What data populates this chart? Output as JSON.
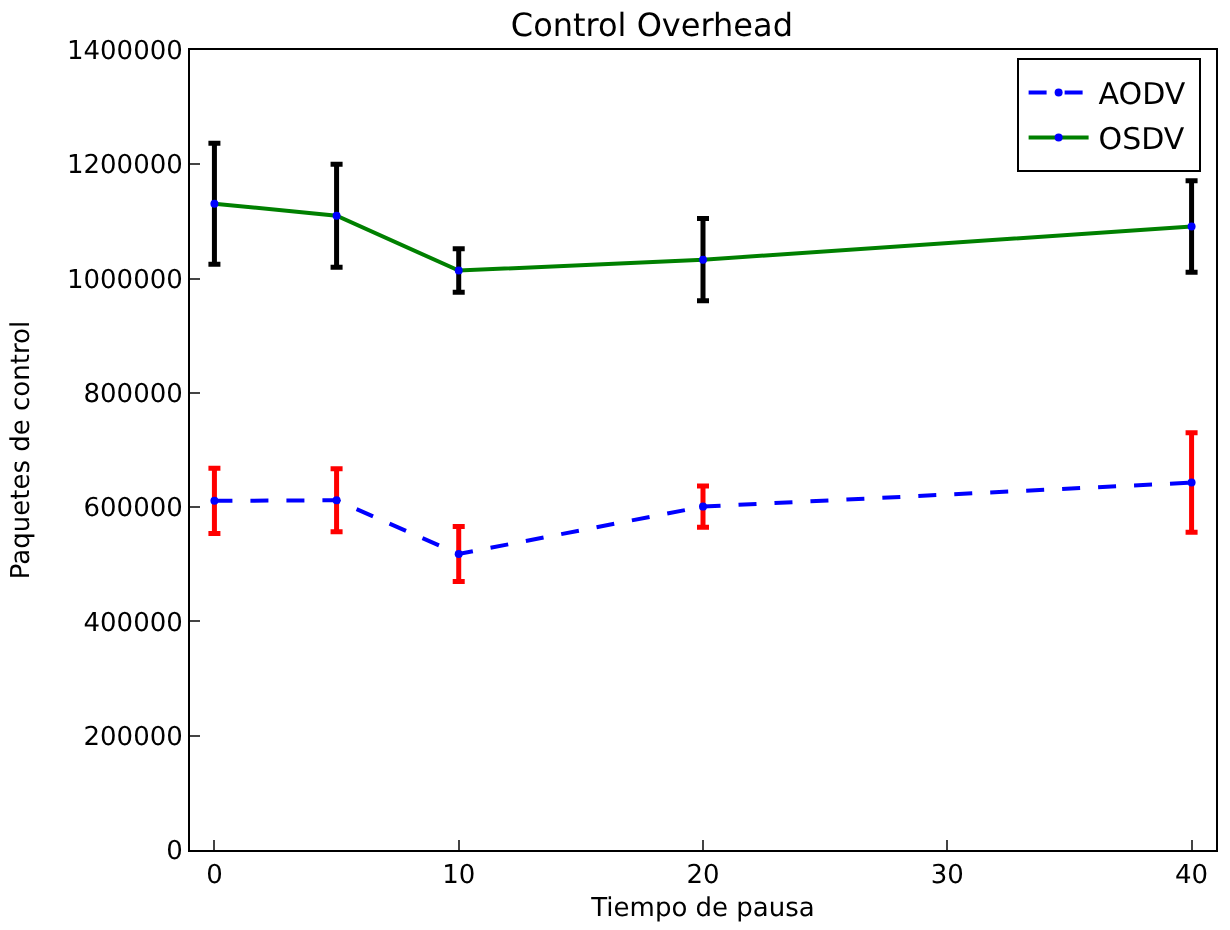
{
  "chart_data": {
    "type": "line",
    "title": "Control Overhead",
    "xlabel": "Tiempo de pausa",
    "ylabel": "Paquetes de control",
    "x": [
      0,
      5,
      10,
      20,
      40
    ],
    "series": [
      {
        "name": "AODV",
        "color": "#0000ff",
        "line_style": "dashed",
        "values": [
          611000,
          612000,
          518000,
          601000,
          643000
        ],
        "errors": [
          57000,
          55000,
          48000,
          36000,
          87000
        ]
      },
      {
        "name": "OSDV",
        "color": "#008000",
        "line_style": "solid",
        "values": [
          1131000,
          1110000,
          1014000,
          1033000,
          1091000
        ],
        "errors": [
          106000,
          90000,
          38000,
          72000,
          80000
        ]
      }
    ],
    "xlim": [
      -1,
      41
    ],
    "xticks": [
      0,
      10,
      20,
      30,
      40
    ],
    "ylim": [
      0,
      1400000
    ],
    "yticks": [
      0,
      200000,
      400000,
      600000,
      800000,
      1000000,
      1200000,
      1400000
    ],
    "legend": "top right",
    "marker": "circle"
  }
}
